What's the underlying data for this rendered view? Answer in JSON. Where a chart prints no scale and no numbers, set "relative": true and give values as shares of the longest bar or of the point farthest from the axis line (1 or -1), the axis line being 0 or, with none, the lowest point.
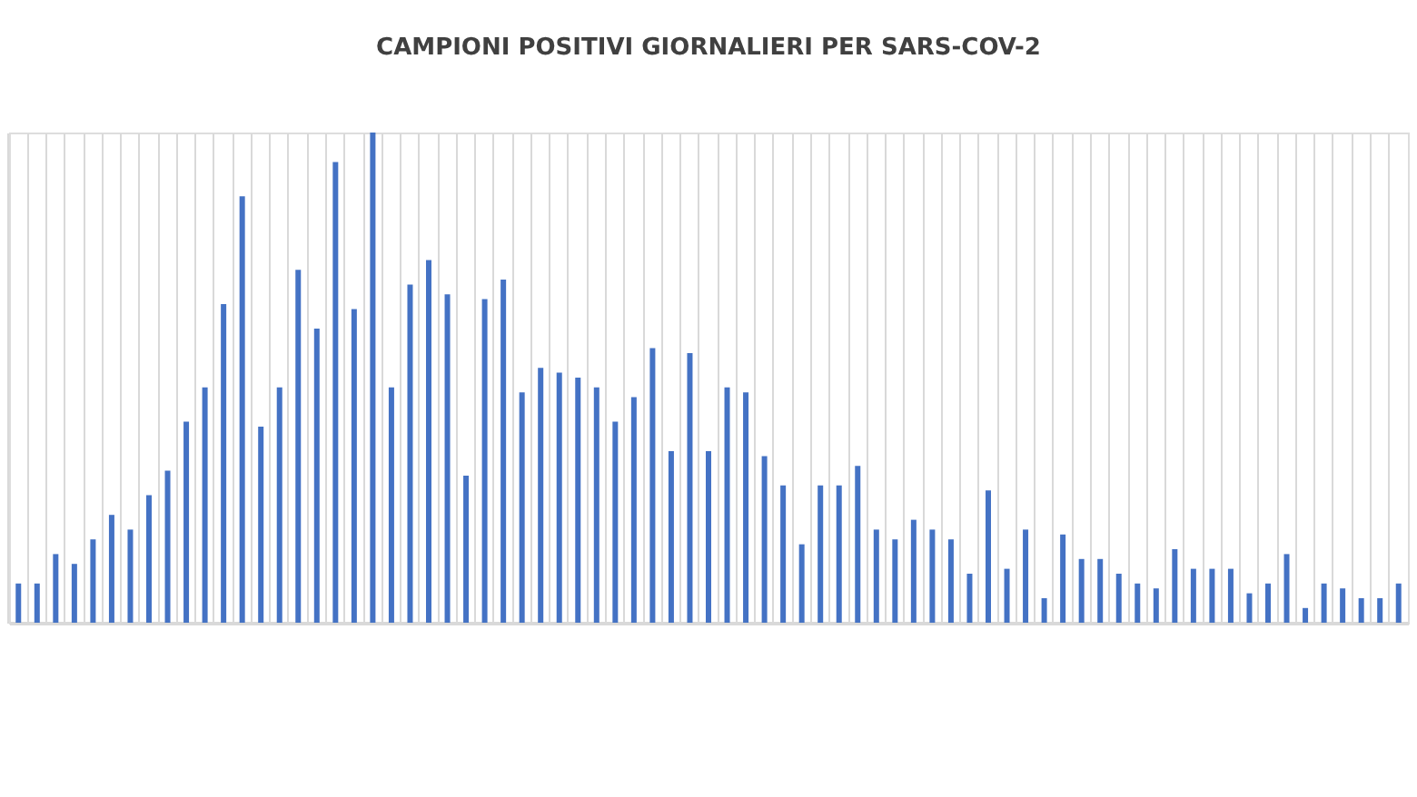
{
  "chart_data": {
    "type": "bar",
    "title": "CAMPIONI POSITIVI GIORNALIERI PER SARS-COV-2",
    "relative": true,
    "color": "#4472c4",
    "grid": "x",
    "tick_labels": false,
    "categories": [
      null,
      null,
      null,
      null,
      null,
      null,
      null,
      null,
      null,
      null,
      null,
      null,
      null,
      null,
      null,
      null,
      null,
      null,
      null,
      null,
      null,
      null,
      null,
      null,
      null,
      null,
      null,
      null,
      null,
      null,
      null,
      null,
      null,
      null,
      null,
      null,
      null,
      null,
      null,
      null,
      null,
      null,
      null,
      null,
      null,
      null,
      null,
      null,
      null,
      null,
      null,
      null,
      null,
      null,
      null,
      null,
      null,
      null,
      null,
      null,
      null,
      null,
      null,
      null,
      null,
      null,
      null,
      null,
      null,
      null,
      null,
      null,
      null,
      null,
      null
    ],
    "values": [
      0.08,
      0.08,
      0.14,
      0.12,
      0.17,
      0.22,
      0.19,
      0.26,
      0.31,
      0.41,
      0.48,
      0.65,
      0.87,
      0.4,
      0.48,
      0.72,
      0.6,
      0.94,
      0.64,
      1,
      0.48,
      0.69,
      0.74,
      0.67,
      0.3,
      0.66,
      0.7,
      0.47,
      0.52,
      0.51,
      0.5,
      0.48,
      0.41,
      0.46,
      0.56,
      0.35,
      0.55,
      0.35,
      0.48,
      0.47,
      0.34,
      0.28,
      0.16,
      0.28,
      0.28,
      0.32,
      0.19,
      0.17,
      0.21,
      0.19,
      0.17,
      0.1,
      0.27,
      0.11,
      0.19,
      0.05,
      0.18,
      0.13,
      0.13,
      0.1,
      0.08,
      0.07,
      0.15,
      0.11,
      0.11,
      0.11,
      0.06,
      0.08,
      0.14,
      0.03,
      0.08,
      0.07,
      0.05,
      0.05,
      0.08
    ]
  }
}
